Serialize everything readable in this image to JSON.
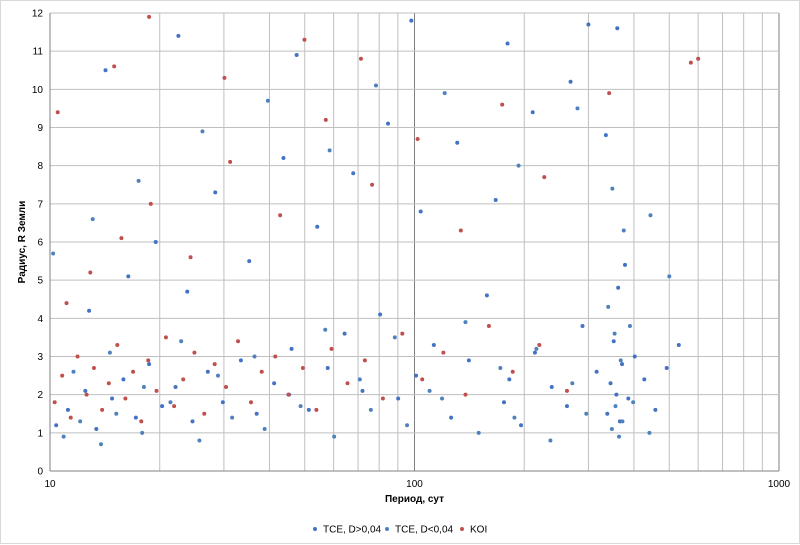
{
  "chart_data": {
    "type": "scatter",
    "title": "",
    "xlabel": "Период, сут",
    "ylabel": "Радиус, R Земли",
    "xscale": "log",
    "xlim": [
      10,
      1000
    ],
    "ylim": [
      0,
      12
    ],
    "x_ticks": [
      10,
      100,
      1000
    ],
    "x_tick_labels": [
      "10",
      "100",
      "1000"
    ],
    "y_ticks": [
      0,
      1,
      2,
      3,
      4,
      5,
      6,
      7,
      8,
      9,
      10,
      11,
      12
    ],
    "y_tick_labels": [
      "0",
      "1",
      "2",
      "3",
      "4",
      "5",
      "6",
      "7",
      "8",
      "9",
      "10",
      "11",
      "12"
    ],
    "grid": true,
    "legend_position": "bottom",
    "series": [
      {
        "name": "TCE, D>0,04",
        "color": "#4472C4",
        "marker": "circle",
        "points": [
          [
            10.4,
            1.2
          ],
          [
            11.2,
            1.6
          ],
          [
            12.5,
            2.1
          ],
          [
            13.4,
            1.1
          ],
          [
            14.8,
            1.9
          ],
          [
            15.9,
            2.4
          ],
          [
            17.2,
            1.4
          ],
          [
            18.7,
            2.8
          ],
          [
            20.3,
            1.7
          ],
          [
            22.1,
            2.2
          ],
          [
            24.6,
            1.3
          ],
          [
            27.1,
            2.6
          ],
          [
            29.8,
            1.8
          ],
          [
            33.4,
            2.9
          ],
          [
            36.9,
            1.5
          ],
          [
            41.2,
            2.3
          ],
          [
            46.0,
            3.2
          ],
          [
            51.3,
            1.6
          ],
          [
            57.8,
            2.7
          ],
          [
            64.3,
            3.6
          ],
          [
            72.0,
            2.1
          ],
          [
            80.5,
            4.1
          ],
          [
            90.2,
            1.9
          ],
          [
            101.0,
            2.5
          ],
          [
            113.0,
            3.3
          ],
          [
            126.0,
            1.4
          ],
          [
            141.0,
            2.9
          ],
          [
            158.0,
            4.6
          ],
          [
            176.0,
            1.8
          ],
          [
            182.0,
            2.4
          ],
          [
            196.0,
            1.2
          ],
          [
            214.0,
            3.1
          ],
          [
            238.0,
            2.2
          ],
          [
            262.0,
            1.7
          ],
          [
            289.0,
            3.8
          ],
          [
            316.0,
            2.6
          ],
          [
            338.0,
            1.5
          ],
          [
            345.0,
            2.3
          ],
          [
            352.0,
            3.4
          ],
          [
            358.0,
            2.0
          ],
          [
            362.0,
            4.8
          ],
          [
            366.0,
            1.3
          ],
          [
            371.0,
            2.8
          ],
          [
            378.0,
            5.4
          ],
          [
            386.0,
            1.9
          ],
          [
            402.0,
            3.0
          ],
          [
            427.0,
            2.4
          ],
          [
            458.0,
            1.6
          ],
          [
            492.0,
            2.7
          ],
          [
            531.0,
            3.3
          ],
          [
            12.8,
            4.2
          ],
          [
            16.4,
            5.1
          ],
          [
            19.5,
            6.0
          ],
          [
            23.8,
            4.7
          ],
          [
            28.4,
            7.3
          ],
          [
            35.2,
            5.5
          ],
          [
            43.7,
            8.2
          ],
          [
            54.1,
            6.4
          ],
          [
            67.9,
            7.8
          ],
          [
            84.6,
            9.1
          ],
          [
            104.0,
            6.8
          ],
          [
            131.0,
            8.6
          ],
          [
            167.0,
            7.1
          ],
          [
            211.0,
            9.4
          ],
          [
            268.0,
            10.2
          ],
          [
            335.0,
            8.8
          ],
          [
            360.0,
            11.6
          ],
          [
            14.2,
            10.5
          ],
          [
            22.5,
            11.4
          ],
          [
            47.5,
            10.9
          ],
          [
            98.0,
            11.8
          ],
          [
            180.0,
            11.2
          ],
          [
            300.0,
            11.7
          ]
        ]
      },
      {
        "name": "TCE, D<0,04",
        "color": "#4F81BD",
        "marker": "circle",
        "points": [
          [
            10.9,
            0.9
          ],
          [
            12.1,
            1.3
          ],
          [
            13.8,
            0.7
          ],
          [
            15.2,
            1.5
          ],
          [
            17.9,
            1.0
          ],
          [
            21.4,
            1.8
          ],
          [
            25.7,
            0.8
          ],
          [
            31.6,
            1.4
          ],
          [
            38.8,
            1.1
          ],
          [
            48.7,
            1.7
          ],
          [
            60.2,
            0.9
          ],
          [
            75.9,
            1.6
          ],
          [
            95.4,
            1.2
          ],
          [
            119.0,
            1.9
          ],
          [
            150.0,
            1.0
          ],
          [
            188.0,
            1.4
          ],
          [
            236.0,
            0.8
          ],
          [
            296.0,
            1.5
          ],
          [
            348.0,
            1.1
          ],
          [
            356.0,
            1.7
          ],
          [
            364.0,
            0.9
          ],
          [
            372.0,
            1.3
          ],
          [
            398.0,
            1.8
          ],
          [
            441.0,
            1.0
          ],
          [
            11.6,
            2.6
          ],
          [
            14.6,
            3.1
          ],
          [
            18.1,
            2.2
          ],
          [
            22.9,
            3.4
          ],
          [
            28.9,
            2.5
          ],
          [
            36.4,
            3.0
          ],
          [
            45.3,
            2.0
          ],
          [
            56.9,
            3.7
          ],
          [
            70.8,
            2.4
          ],
          [
            88.3,
            3.5
          ],
          [
            110.0,
            2.1
          ],
          [
            138.0,
            3.9
          ],
          [
            172.0,
            2.7
          ],
          [
            216.0,
            3.2
          ],
          [
            271.0,
            2.3
          ],
          [
            340.0,
            4.3
          ],
          [
            354.0,
            3.6
          ],
          [
            368.0,
            2.9
          ],
          [
            375.0,
            6.3
          ],
          [
            390.0,
            3.8
          ],
          [
            10.2,
            5.7
          ],
          [
            13.1,
            6.6
          ],
          [
            17.5,
            7.6
          ],
          [
            26.2,
            8.9
          ],
          [
            39.6,
            9.7
          ],
          [
            58.5,
            8.4
          ],
          [
            78.4,
            10.1
          ],
          [
            121.0,
            9.9
          ],
          [
            193.0,
            8.0
          ],
          [
            280.0,
            9.5
          ],
          [
            349.0,
            7.4
          ],
          [
            444.0,
            6.7
          ],
          [
            500.0,
            5.1
          ]
        ]
      },
      {
        "name": "KOI",
        "color": "#C0504D",
        "marker": "circle",
        "points": [
          [
            10.3,
            1.8
          ],
          [
            10.8,
            2.5
          ],
          [
            11.4,
            1.4
          ],
          [
            11.9,
            3.0
          ],
          [
            12.6,
            2.0
          ],
          [
            13.2,
            2.7
          ],
          [
            13.9,
            1.6
          ],
          [
            14.5,
            2.3
          ],
          [
            15.3,
            3.3
          ],
          [
            16.1,
            1.9
          ],
          [
            16.9,
            2.6
          ],
          [
            17.8,
            1.3
          ],
          [
            18.6,
            2.9
          ],
          [
            19.6,
            2.1
          ],
          [
            20.8,
            3.5
          ],
          [
            21.9,
            1.7
          ],
          [
            23.2,
            2.4
          ],
          [
            24.9,
            3.1
          ],
          [
            26.5,
            1.5
          ],
          [
            28.3,
            2.8
          ],
          [
            30.4,
            2.2
          ],
          [
            32.8,
            3.4
          ],
          [
            35.6,
            1.8
          ],
          [
            38.1,
            2.6
          ],
          [
            41.5,
            3.0
          ],
          [
            45.1,
            2.0
          ],
          [
            49.4,
            2.7
          ],
          [
            53.8,
            1.6
          ],
          [
            59.2,
            3.2
          ],
          [
            65.5,
            2.3
          ],
          [
            73.1,
            2.9
          ],
          [
            81.9,
            1.9
          ],
          [
            92.6,
            3.6
          ],
          [
            105.0,
            2.4
          ],
          [
            120.0,
            3.1
          ],
          [
            138.0,
            2.0
          ],
          [
            160.0,
            3.8
          ],
          [
            186.0,
            2.6
          ],
          [
            220.0,
            3.3
          ],
          [
            262.0,
            2.1
          ],
          [
            11.1,
            4.4
          ],
          [
            12.9,
            5.2
          ],
          [
            15.7,
            6.1
          ],
          [
            18.9,
            7.0
          ],
          [
            24.3,
            5.6
          ],
          [
            31.2,
            8.1
          ],
          [
            42.8,
            6.7
          ],
          [
            57.1,
            9.2
          ],
          [
            76.5,
            7.5
          ],
          [
            102.0,
            8.7
          ],
          [
            134.0,
            6.3
          ],
          [
            174.0,
            9.6
          ],
          [
            227.0,
            7.7
          ],
          [
            342.0,
            9.9
          ],
          [
            10.5,
            9.4
          ],
          [
            15.0,
            10.6
          ],
          [
            18.7,
            11.9
          ],
          [
            30.1,
            10.3
          ],
          [
            49.9,
            11.3
          ],
          [
            71.3,
            10.8
          ],
          [
            573.0,
            10.7
          ],
          [
            600.0,
            10.8
          ]
        ]
      }
    ]
  }
}
